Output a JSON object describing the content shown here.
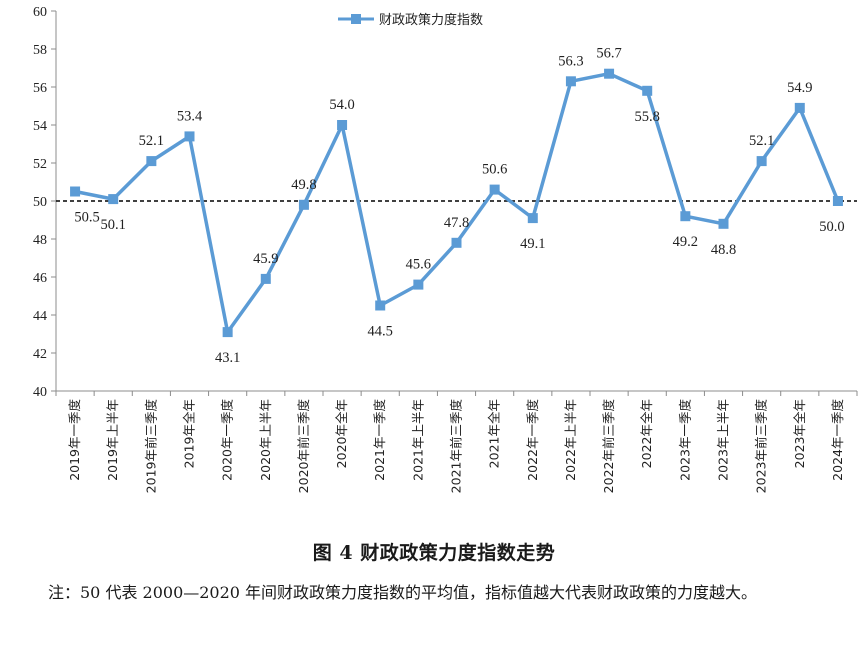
{
  "chart_data": {
    "type": "line",
    "categories": [
      "2019年一季度",
      "2019年上半年",
      "2019年前三季度",
      "2019年全年",
      "2020年一季度",
      "2020年上半年",
      "2020年前三季度",
      "2020年全年",
      "2021年一季度",
      "2021年上半年",
      "2021年前三季度",
      "2021年全年",
      "2022年一季度",
      "2022年上半年",
      "2022年前三季度",
      "2022年全年",
      "2023年一季度",
      "2023年上半年",
      "2023年前三季度",
      "2023年全年",
      "2024年一季度"
    ],
    "series": [
      {
        "name": "财政政策力度指数",
        "values": [
          50.5,
          50.1,
          52.1,
          53.4,
          43.1,
          45.9,
          49.8,
          54.0,
          44.5,
          45.6,
          47.8,
          50.6,
          49.1,
          56.3,
          56.7,
          55.8,
          49.2,
          48.8,
          52.1,
          54.9,
          50.0
        ],
        "labels": [
          "50.5",
          "50.1",
          "52.1",
          "53.4",
          "43.1",
          "45.9",
          "49.8",
          "54.0",
          "44.5",
          "45.6",
          "47.8",
          "50.6",
          "49.1",
          "56.3",
          "56.7",
          "55.8",
          "49.2",
          "48.8",
          "52.1",
          "54.9",
          "50.0"
        ],
        "color": "#5b9bd5"
      }
    ],
    "ylim": [
      40,
      60
    ],
    "yticks": [
      "40",
      "42",
      "44",
      "46",
      "48",
      "50",
      "52",
      "54",
      "56",
      "58",
      "60"
    ],
    "reference_line": 50,
    "legend_position": "top-center",
    "grid": false
  },
  "caption": "图 4  财政政策力度指数走势",
  "note": "注：50 代表 2000—2020 年间财政政策力度指数的平均值，指标值越大代表财政政策的力度越大。"
}
